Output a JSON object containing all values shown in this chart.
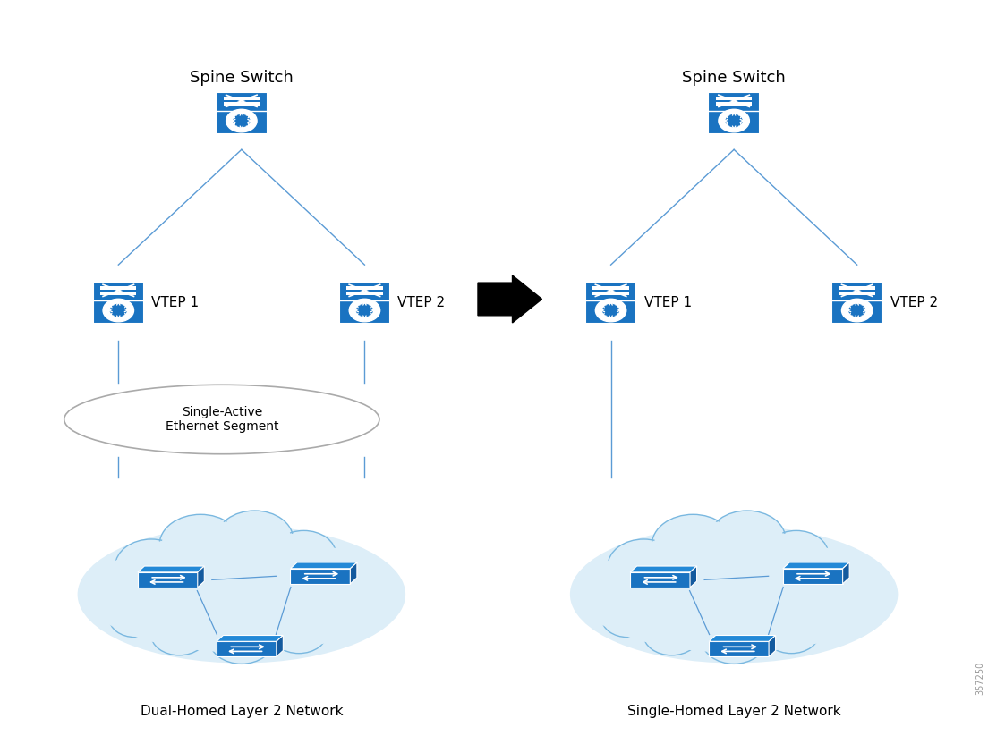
{
  "bg_color": "#ffffff",
  "line_color": "#5b9bd5",
  "device_blue": "#1a73c1",
  "device_dark": "#145a9e",
  "device_top": "#2389d7",
  "cloud_fill": "#ddeef8",
  "cloud_edge": "#7ab8e0",
  "ellipse_fill": "#ffffff",
  "ellipse_edge": "#aaaaaa",
  "arrow_color": "#000000",
  "text_color": "#000000",
  "left_spine_label": "Spine Switch",
  "right_spine_label": "Spine Switch",
  "left_vtep1_label": "VTEP 1",
  "left_vtep2_label": "VTEP 2",
  "right_vtep1_label": "VTEP 1",
  "right_vtep2_label": "VTEP 2",
  "ethernet_segment_label": "Single-Active\nEthernet Segment",
  "left_bottom_label": "Dual-Homed Layer 2 Network",
  "right_bottom_label": "Single-Homed Layer 2 Network",
  "watermark": "357250",
  "font_size_title": 13,
  "font_size_vtep": 11,
  "font_size_bottom": 11,
  "font_size_segment": 10,
  "font_size_watermark": 7
}
